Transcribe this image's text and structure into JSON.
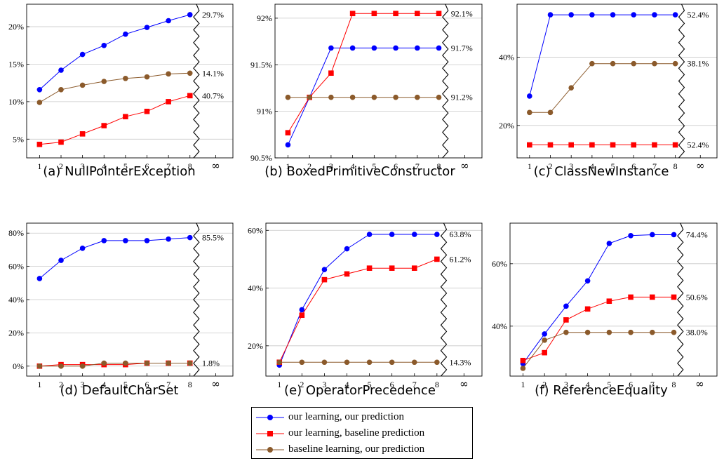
{
  "colors": {
    "blue": "#0000ff",
    "red": "#ff0000",
    "brown": "#8b5a2b",
    "grid": "#c8c8c8"
  },
  "legend": {
    "items": [
      {
        "label": "our learning, our prediction",
        "color": "#0000ff",
        "marker": "circle"
      },
      {
        "label": "our learning, baseline prediction",
        "color": "#ff0000",
        "marker": "square"
      },
      {
        "label": "baseline learning, our prediction",
        "color": "#8b5a2b",
        "marker": "circle"
      }
    ]
  },
  "chart_data": [
    {
      "type": "line",
      "caption": "(a) NullPointerException",
      "x": [
        1,
        2,
        3,
        4,
        5,
        6,
        7,
        8
      ],
      "x_extra_tick": "∞",
      "ylim": [
        2.5,
        23
      ],
      "yticks": [
        5,
        10,
        15,
        20
      ],
      "ytick_labels": [
        "5%",
        "10%",
        "15%",
        "20%"
      ],
      "grid": "horizontal",
      "series": [
        {
          "name": "our learning, our prediction",
          "values": [
            11.6,
            14.2,
            16.3,
            17.5,
            19.0,
            19.9,
            20.8,
            21.6
          ],
          "limit_label": "29.7%"
        },
        {
          "name": "our learning, baseline prediction",
          "values": [
            4.3,
            4.6,
            5.7,
            6.8,
            8.0,
            8.7,
            10.0,
            10.8
          ],
          "limit_label": "40.7%"
        },
        {
          "name": "baseline learning, our prediction",
          "values": [
            9.9,
            11.6,
            12.2,
            12.7,
            13.1,
            13.3,
            13.7,
            13.8
          ],
          "limit_label": "14.1%"
        }
      ]
    },
    {
      "type": "line",
      "caption": "(b) BoxedPrimitiveConstructor",
      "x": [
        1,
        2,
        3,
        4,
        5,
        6,
        7,
        8
      ],
      "x_extra_tick": "∞",
      "ylim": [
        90.5,
        92.15
      ],
      "yticks": [
        90.5,
        91,
        91.5,
        92
      ],
      "ytick_labels": [
        "90.5%",
        "91%",
        "91.5%",
        "92%"
      ],
      "grid": "horizontal",
      "series": [
        {
          "name": "our learning, our prediction",
          "values": [
            90.64,
            91.15,
            91.68,
            91.68,
            91.68,
            91.68,
            91.68,
            91.68
          ],
          "limit_label": "91.7%"
        },
        {
          "name": "our learning, baseline prediction",
          "values": [
            90.77,
            91.15,
            91.41,
            92.05,
            92.05,
            92.05,
            92.05,
            92.05
          ],
          "limit_label": "92.1%"
        },
        {
          "name": "baseline learning, our prediction",
          "values": [
            91.15,
            91.15,
            91.15,
            91.15,
            91.15,
            91.15,
            91.15,
            91.15
          ],
          "limit_label": "91.2%"
        }
      ]
    },
    {
      "type": "line",
      "caption": "(c) ClassNewInstance",
      "x": [
        1,
        2,
        3,
        4,
        5,
        6,
        7,
        8
      ],
      "x_extra_tick": "∞",
      "ylim": [
        10.5,
        55.5
      ],
      "yticks": [
        20,
        40
      ],
      "ytick_labels": [
        "20%",
        "40%"
      ],
      "grid": "horizontal",
      "series": [
        {
          "name": "our learning, our prediction",
          "values": [
            28.6,
            52.4,
            52.4,
            52.4,
            52.4,
            52.4,
            52.4,
            52.4
          ],
          "limit_label": "52.4%"
        },
        {
          "name": "our learning, baseline prediction",
          "values": [
            14.3,
            14.3,
            14.3,
            14.3,
            14.3,
            14.3,
            14.3,
            14.3
          ],
          "limit_label": "52.4%"
        },
        {
          "name": "baseline learning, our prediction",
          "values": [
            23.8,
            23.8,
            31.0,
            38.1,
            38.1,
            38.1,
            38.1,
            38.1
          ],
          "limit_label": "38.1%"
        }
      ]
    },
    {
      "type": "line",
      "caption": "(d) DefaultCharSet",
      "x": [
        1,
        2,
        3,
        4,
        5,
        6,
        7,
        8
      ],
      "x_extra_tick": "∞",
      "ylim": [
        -6,
        86
      ],
      "yticks": [
        0,
        20,
        40,
        60,
        80
      ],
      "ytick_labels": [
        "0%",
        "20%",
        "40%",
        "60%",
        "80%"
      ],
      "grid": "horizontal",
      "series": [
        {
          "name": "our learning, our prediction",
          "values": [
            52.7,
            63.6,
            70.9,
            75.5,
            75.5,
            75.5,
            76.4,
            77.3
          ],
          "limit_label": "85.5%"
        },
        {
          "name": "our learning, baseline prediction",
          "values": [
            0.0,
            0.9,
            0.9,
            0.9,
            0.9,
            1.8,
            1.8,
            1.8
          ],
          "limit_label": "1.8%"
        },
        {
          "name": "baseline learning, our prediction",
          "values": [
            0.0,
            0.0,
            0.0,
            1.8,
            1.8,
            1.8,
            1.8,
            1.8
          ],
          "limit_label": ""
        }
      ]
    },
    {
      "type": "line",
      "caption": "(e) OperatorPrecedence",
      "x": [
        1,
        2,
        3,
        4,
        5,
        6,
        7,
        8
      ],
      "x_extra_tick": "∞",
      "ylim": [
        9.5,
        62.5
      ],
      "yticks": [
        20,
        40,
        60
      ],
      "ytick_labels": [
        "20%",
        "40%",
        "60%"
      ],
      "grid": "horizontal",
      "series": [
        {
          "name": "our learning, our prediction",
          "values": [
            13.3,
            32.5,
            46.4,
            53.6,
            58.6,
            58.6,
            58.6,
            58.6
          ],
          "limit_label": "63.8%"
        },
        {
          "name": "our learning, baseline prediction",
          "values": [
            14.3,
            30.6,
            42.9,
            44.9,
            46.9,
            46.9,
            46.9,
            50.0
          ],
          "limit_label": "61.2%"
        },
        {
          "name": "baseline learning, our prediction",
          "values": [
            14.3,
            14.3,
            14.3,
            14.3,
            14.3,
            14.3,
            14.3,
            14.3
          ],
          "limit_label": "14.3%"
        }
      ]
    },
    {
      "type": "line",
      "caption": "(f) ReferenceEquality",
      "x": [
        1,
        2,
        3,
        4,
        5,
        6,
        7,
        8
      ],
      "x_extra_tick": "∞",
      "ylim": [
        24,
        73
      ],
      "yticks": [
        40,
        60
      ],
      "ytick_labels": [
        "40%",
        "60%"
      ],
      "grid": "horizontal",
      "series": [
        {
          "name": "our learning, our prediction",
          "values": [
            28.0,
            37.5,
            46.4,
            54.5,
            66.5,
            69.0,
            69.3,
            69.3
          ],
          "limit_label": "74.4%"
        },
        {
          "name": "our learning, baseline prediction",
          "values": [
            29.0,
            31.5,
            42.0,
            45.5,
            48.0,
            49.3,
            49.3,
            49.3
          ],
          "limit_label": "50.6%"
        },
        {
          "name": "baseline learning, our prediction",
          "values": [
            26.5,
            35.5,
            38.0,
            38.0,
            38.0,
            38.0,
            38.0,
            38.0
          ],
          "limit_label": "38.0%"
        }
      ]
    }
  ]
}
